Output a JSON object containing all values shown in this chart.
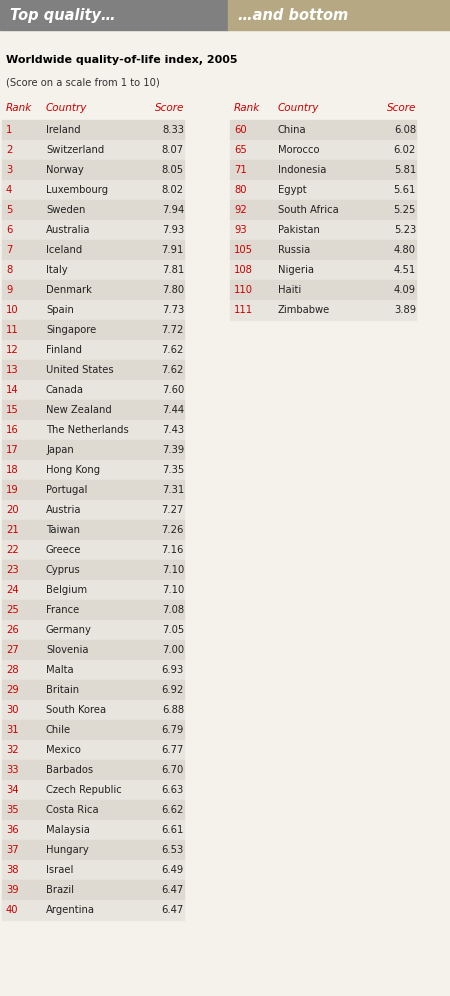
{
  "header_left": "Top quality…",
  "header_right": "…and bottom",
  "header_left_bg": "#808080",
  "header_right_bg": "#b5a882",
  "header_text_color": "#ffffff",
  "title": "Worldwide quality-of-life index, 2005",
  "subtitle": "(Score on a scale from 1 to 10)",
  "col_headers": [
    "Rank",
    "Country",
    "Score"
  ],
  "rank_color": "#cc0000",
  "bg_odd": "#dedad2",
  "bg_even": "#e8e5de",
  "fig_bg": "#f5f2eb",
  "left_data": [
    [
      1,
      "Ireland",
      "8.33"
    ],
    [
      2,
      "Switzerland",
      "8.07"
    ],
    [
      3,
      "Norway",
      "8.05"
    ],
    [
      4,
      "Luxembourg",
      "8.02"
    ],
    [
      5,
      "Sweden",
      "7.94"
    ],
    [
      6,
      "Australia",
      "7.93"
    ],
    [
      7,
      "Iceland",
      "7.91"
    ],
    [
      8,
      "Italy",
      "7.81"
    ],
    [
      9,
      "Denmark",
      "7.80"
    ],
    [
      10,
      "Spain",
      "7.73"
    ],
    [
      11,
      "Singapore",
      "7.72"
    ],
    [
      12,
      "Finland",
      "7.62"
    ],
    [
      13,
      "United States",
      "7.62"
    ],
    [
      14,
      "Canada",
      "7.60"
    ],
    [
      15,
      "New Zealand",
      "7.44"
    ],
    [
      16,
      "The Netherlands",
      "7.43"
    ],
    [
      17,
      "Japan",
      "7.39"
    ],
    [
      18,
      "Hong Kong",
      "7.35"
    ],
    [
      19,
      "Portugal",
      "7.31"
    ],
    [
      20,
      "Austria",
      "7.27"
    ],
    [
      21,
      "Taiwan",
      "7.26"
    ],
    [
      22,
      "Greece",
      "7.16"
    ],
    [
      23,
      "Cyprus",
      "7.10"
    ],
    [
      24,
      "Belgium",
      "7.10"
    ],
    [
      25,
      "France",
      "7.08"
    ],
    [
      26,
      "Germany",
      "7.05"
    ],
    [
      27,
      "Slovenia",
      "7.00"
    ],
    [
      28,
      "Malta",
      "6.93"
    ],
    [
      29,
      "Britain",
      "6.92"
    ],
    [
      30,
      "South Korea",
      "6.88"
    ],
    [
      31,
      "Chile",
      "6.79"
    ],
    [
      32,
      "Mexico",
      "6.77"
    ],
    [
      33,
      "Barbados",
      "6.70"
    ],
    [
      34,
      "Czech Republic",
      "6.63"
    ],
    [
      35,
      "Costa Rica",
      "6.62"
    ],
    [
      36,
      "Malaysia",
      "6.61"
    ],
    [
      37,
      "Hungary",
      "6.53"
    ],
    [
      38,
      "Israel",
      "6.49"
    ],
    [
      39,
      "Brazil",
      "6.47"
    ],
    [
      40,
      "Argentina",
      "6.47"
    ]
  ],
  "right_data": [
    [
      60,
      "China",
      "6.08"
    ],
    [
      65,
      "Morocco",
      "6.02"
    ],
    [
      71,
      "Indonesia",
      "5.81"
    ],
    [
      80,
      "Egypt",
      "5.61"
    ],
    [
      92,
      "South Africa",
      "5.25"
    ],
    [
      93,
      "Pakistan",
      "5.23"
    ],
    [
      105,
      "Russia",
      "4.80"
    ],
    [
      108,
      "Nigeria",
      "4.51"
    ],
    [
      110,
      "Haiti",
      "4.09"
    ],
    [
      111,
      "Zimbabwe",
      "3.89"
    ]
  ]
}
